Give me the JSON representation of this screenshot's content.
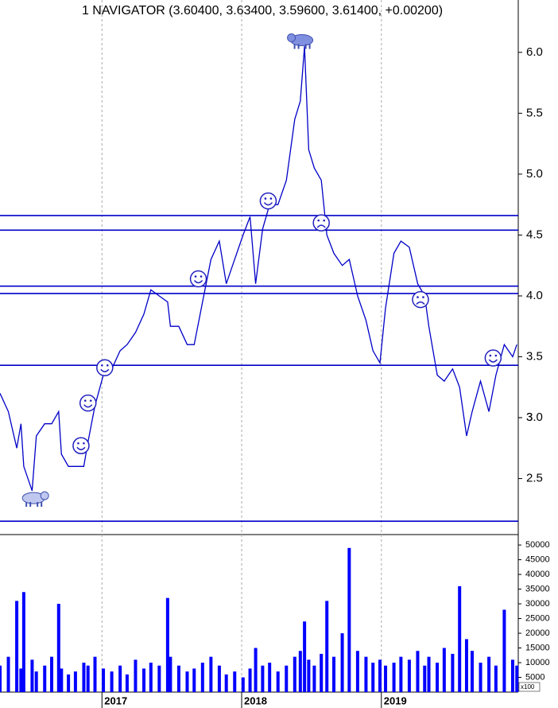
{
  "chart_data": [
    {
      "type": "line",
      "title": "1 NAVIGATOR (3.60400, 3.63400, 3.59600, 3.61400, +0.00200)",
      "x": [
        2016.27,
        2016.33,
        2016.39,
        2016.42,
        2016.44,
        2016.5,
        2016.53,
        2016.59,
        2016.64,
        2016.69,
        2016.71,
        2016.76,
        2016.81,
        2016.87,
        2016.9,
        2016.95,
        2017.01,
        2017.07,
        2017.13,
        2017.18,
        2017.24,
        2017.3,
        2017.35,
        2017.41,
        2017.47,
        2017.49,
        2017.55,
        2017.61,
        2017.66,
        2017.72,
        2017.78,
        2017.84,
        2017.89,
        2017.95,
        2018.01,
        2018.06,
        2018.1,
        2018.15,
        2018.2,
        2018.26,
        2018.32,
        2018.38,
        2018.42,
        2018.45,
        2018.48,
        2018.52,
        2018.57,
        2018.61,
        2018.66,
        2018.72,
        2018.77,
        2018.83,
        2018.89,
        2018.94,
        2018.99,
        2019.03,
        2019.09,
        2019.14,
        2019.2,
        2019.26,
        2019.31,
        2019.34,
        2019.4,
        2019.45,
        2019.51,
        2019.56,
        2019.61,
        2019.65,
        2019.71,
        2019.77,
        2019.82,
        2019.88,
        2019.94,
        2019.97
      ],
      "series": [
        {
          "color": "#0000c8",
          "values": [
            3.2,
            3.05,
            2.75,
            2.95,
            2.6,
            2.4,
            2.85,
            2.95,
            2.95,
            3.05,
            2.7,
            2.6,
            2.6,
            2.6,
            2.8,
            3.1,
            3.35,
            3.4,
            3.55,
            3.6,
            3.7,
            3.85,
            4.05,
            4.0,
            3.95,
            3.75,
            3.75,
            3.6,
            3.6,
            3.95,
            4.3,
            4.45,
            4.1,
            4.3,
            4.5,
            4.65,
            4.1,
            4.55,
            4.75,
            4.75,
            4.95,
            5.45,
            5.6,
            6.05,
            5.2,
            5.05,
            4.95,
            4.5,
            4.35,
            4.25,
            4.3,
            4.0,
            3.8,
            3.55,
            3.45,
            3.9,
            4.35,
            4.45,
            4.4,
            4.1,
            4.0,
            3.75,
            3.35,
            3.3,
            3.4,
            3.25,
            2.85,
            3.05,
            3.3,
            3.05,
            3.35,
            3.6,
            3.5,
            3.6
          ]
        }
      ],
      "levels": [
        4.66,
        4.54,
        4.08,
        4.02,
        3.43,
        2.15
      ],
      "level_color": "#0000c8",
      "signals": [
        {
          "x": 2016.51,
          "y": 2.34,
          "icon": "bull"
        },
        {
          "x": 2016.85,
          "y": 2.77,
          "icon": "smile"
        },
        {
          "x": 2016.9,
          "y": 3.12,
          "icon": "smile"
        },
        {
          "x": 2017.02,
          "y": 3.41,
          "icon": "smile"
        },
        {
          "x": 2017.69,
          "y": 4.14,
          "icon": "smile"
        },
        {
          "x": 2018.19,
          "y": 4.78,
          "icon": "smile"
        },
        {
          "x": 2018.43,
          "y": 6.1,
          "icon": "bear"
        },
        {
          "x": 2018.57,
          "y": 4.6,
          "icon": "frown"
        },
        {
          "x": 2019.28,
          "y": 3.97,
          "icon": "frown"
        },
        {
          "x": 2019.8,
          "y": 3.49,
          "icon": "smile"
        }
      ],
      "xlim": [
        2016.27,
        2019.98
      ],
      "ylim": [
        2.04,
        6.43
      ],
      "yticks": [
        2.5,
        3.0,
        {
          "value": 3,
          "label": "3.0"
        },
        3.5,
        {
          "value": 4,
          "label": "4.0"
        },
        4.5,
        {
          "value": 5,
          "label": "5.0"
        },
        5.5,
        {
          "value": 6,
          "label": "6.0"
        }
      ]
    },
    {
      "type": "bar",
      "x": [
        2016.27,
        2016.33,
        2016.39,
        2016.42,
        2016.44,
        2016.5,
        2016.53,
        2016.59,
        2016.64,
        2016.69,
        2016.71,
        2016.76,
        2016.81,
        2016.87,
        2016.9,
        2016.95,
        2017.01,
        2017.07,
        2017.13,
        2017.18,
        2017.24,
        2017.3,
        2017.35,
        2017.41,
        2017.47,
        2017.49,
        2017.55,
        2017.61,
        2017.66,
        2017.72,
        2017.78,
        2017.84,
        2017.89,
        2017.95,
        2018.01,
        2018.06,
        2018.1,
        2018.15,
        2018.2,
        2018.26,
        2018.32,
        2018.38,
        2018.42,
        2018.45,
        2018.48,
        2018.52,
        2018.57,
        2018.61,
        2018.66,
        2018.72,
        2018.77,
        2018.83,
        2018.89,
        2018.94,
        2018.99,
        2019.03,
        2019.09,
        2019.14,
        2019.2,
        2019.26,
        2019.31,
        2019.34,
        2019.4,
        2019.45,
        2019.51,
        2019.56,
        2019.61,
        2019.65,
        2019.71,
        2019.77,
        2019.82,
        2019.88,
        2019.94,
        2019.97
      ],
      "series": [
        {
          "color": "#0000ff",
          "values": [
            9000,
            12000,
            31000,
            8000,
            34000,
            11000,
            7000,
            9000,
            12000,
            30000,
            8000,
            6000,
            7000,
            10000,
            9000,
            12000,
            8000,
            7000,
            9000,
            6000,
            11000,
            8000,
            10000,
            9000,
            32000,
            12000,
            9000,
            7000,
            8000,
            10000,
            12000,
            9000,
            6000,
            7000,
            5000,
            8000,
            15000,
            9000,
            10000,
            7000,
            9000,
            12000,
            14000,
            24000,
            11000,
            9000,
            13000,
            31000,
            12000,
            20000,
            49000,
            14000,
            12000,
            10000,
            11000,
            9000,
            10000,
            12000,
            11000,
            14000,
            9000,
            12000,
            10000,
            15000,
            13000,
            36000,
            18000,
            14000,
            10000,
            12000,
            9000,
            28000,
            11000,
            9000
          ]
        }
      ],
      "volume_unit": "x100",
      "xlim": [
        2016.27,
        2019.98
      ],
      "xticks": [
        2017,
        2018,
        2019
      ],
      "ylim": [
        0,
        53000
      ],
      "yticks": [
        5000,
        10000,
        15000,
        20000,
        25000,
        30000,
        35000,
        40000,
        45000,
        50000
      ]
    }
  ]
}
